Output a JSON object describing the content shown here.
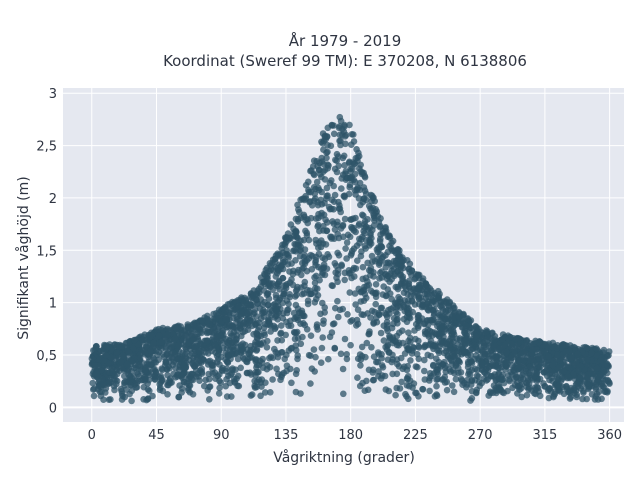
{
  "chart_data": {
    "type": "scatter",
    "title_line1": "År 1979 - 2019",
    "title_line2": "Koordinat (Sweref 99 TM): E 370208, N 6138806",
    "xlabel": "Vågriktning (grader)",
    "ylabel": "Signifikant våghöjd (m)",
    "xlim": [
      -20,
      370
    ],
    "ylim": [
      -0.14,
      3.05
    ],
    "x_ticks": [
      0,
      45,
      90,
      135,
      180,
      225,
      270,
      315,
      360
    ],
    "x_tick_labels": [
      "0",
      "45",
      "90",
      "135",
      "180",
      "225",
      "270",
      "315",
      "360"
    ],
    "y_ticks": [
      0,
      0.5,
      1,
      1.5,
      2,
      2.5,
      3
    ],
    "y_tick_labels": [
      "0",
      "0,5",
      "1",
      "1,5",
      "2",
      "2,5",
      "3"
    ],
    "grid": true,
    "marker_color": "#2e5468",
    "background_color": "#e5e8f0",
    "envelope": {
      "x": [
        0,
        20,
        45,
        70,
        90,
        110,
        130,
        145,
        160,
        170,
        180,
        190,
        205,
        225,
        250,
        270,
        300,
        330,
        360
      ],
      "y_max": [
        0.6,
        0.6,
        0.75,
        0.8,
        0.95,
        1.1,
        1.5,
        2.0,
        2.6,
        2.85,
        2.7,
        2.2,
        1.7,
        1.3,
        1.0,
        0.75,
        0.65,
        0.6,
        0.55
      ],
      "y_min": [
        0.05,
        0.05,
        0.05,
        0.05,
        0.05,
        0.05,
        0.05,
        0.05,
        0.05,
        0.05,
        0.05,
        0.05,
        0.05,
        0.05,
        0.05,
        0.05,
        0.05,
        0.05,
        0.05
      ]
    }
  }
}
